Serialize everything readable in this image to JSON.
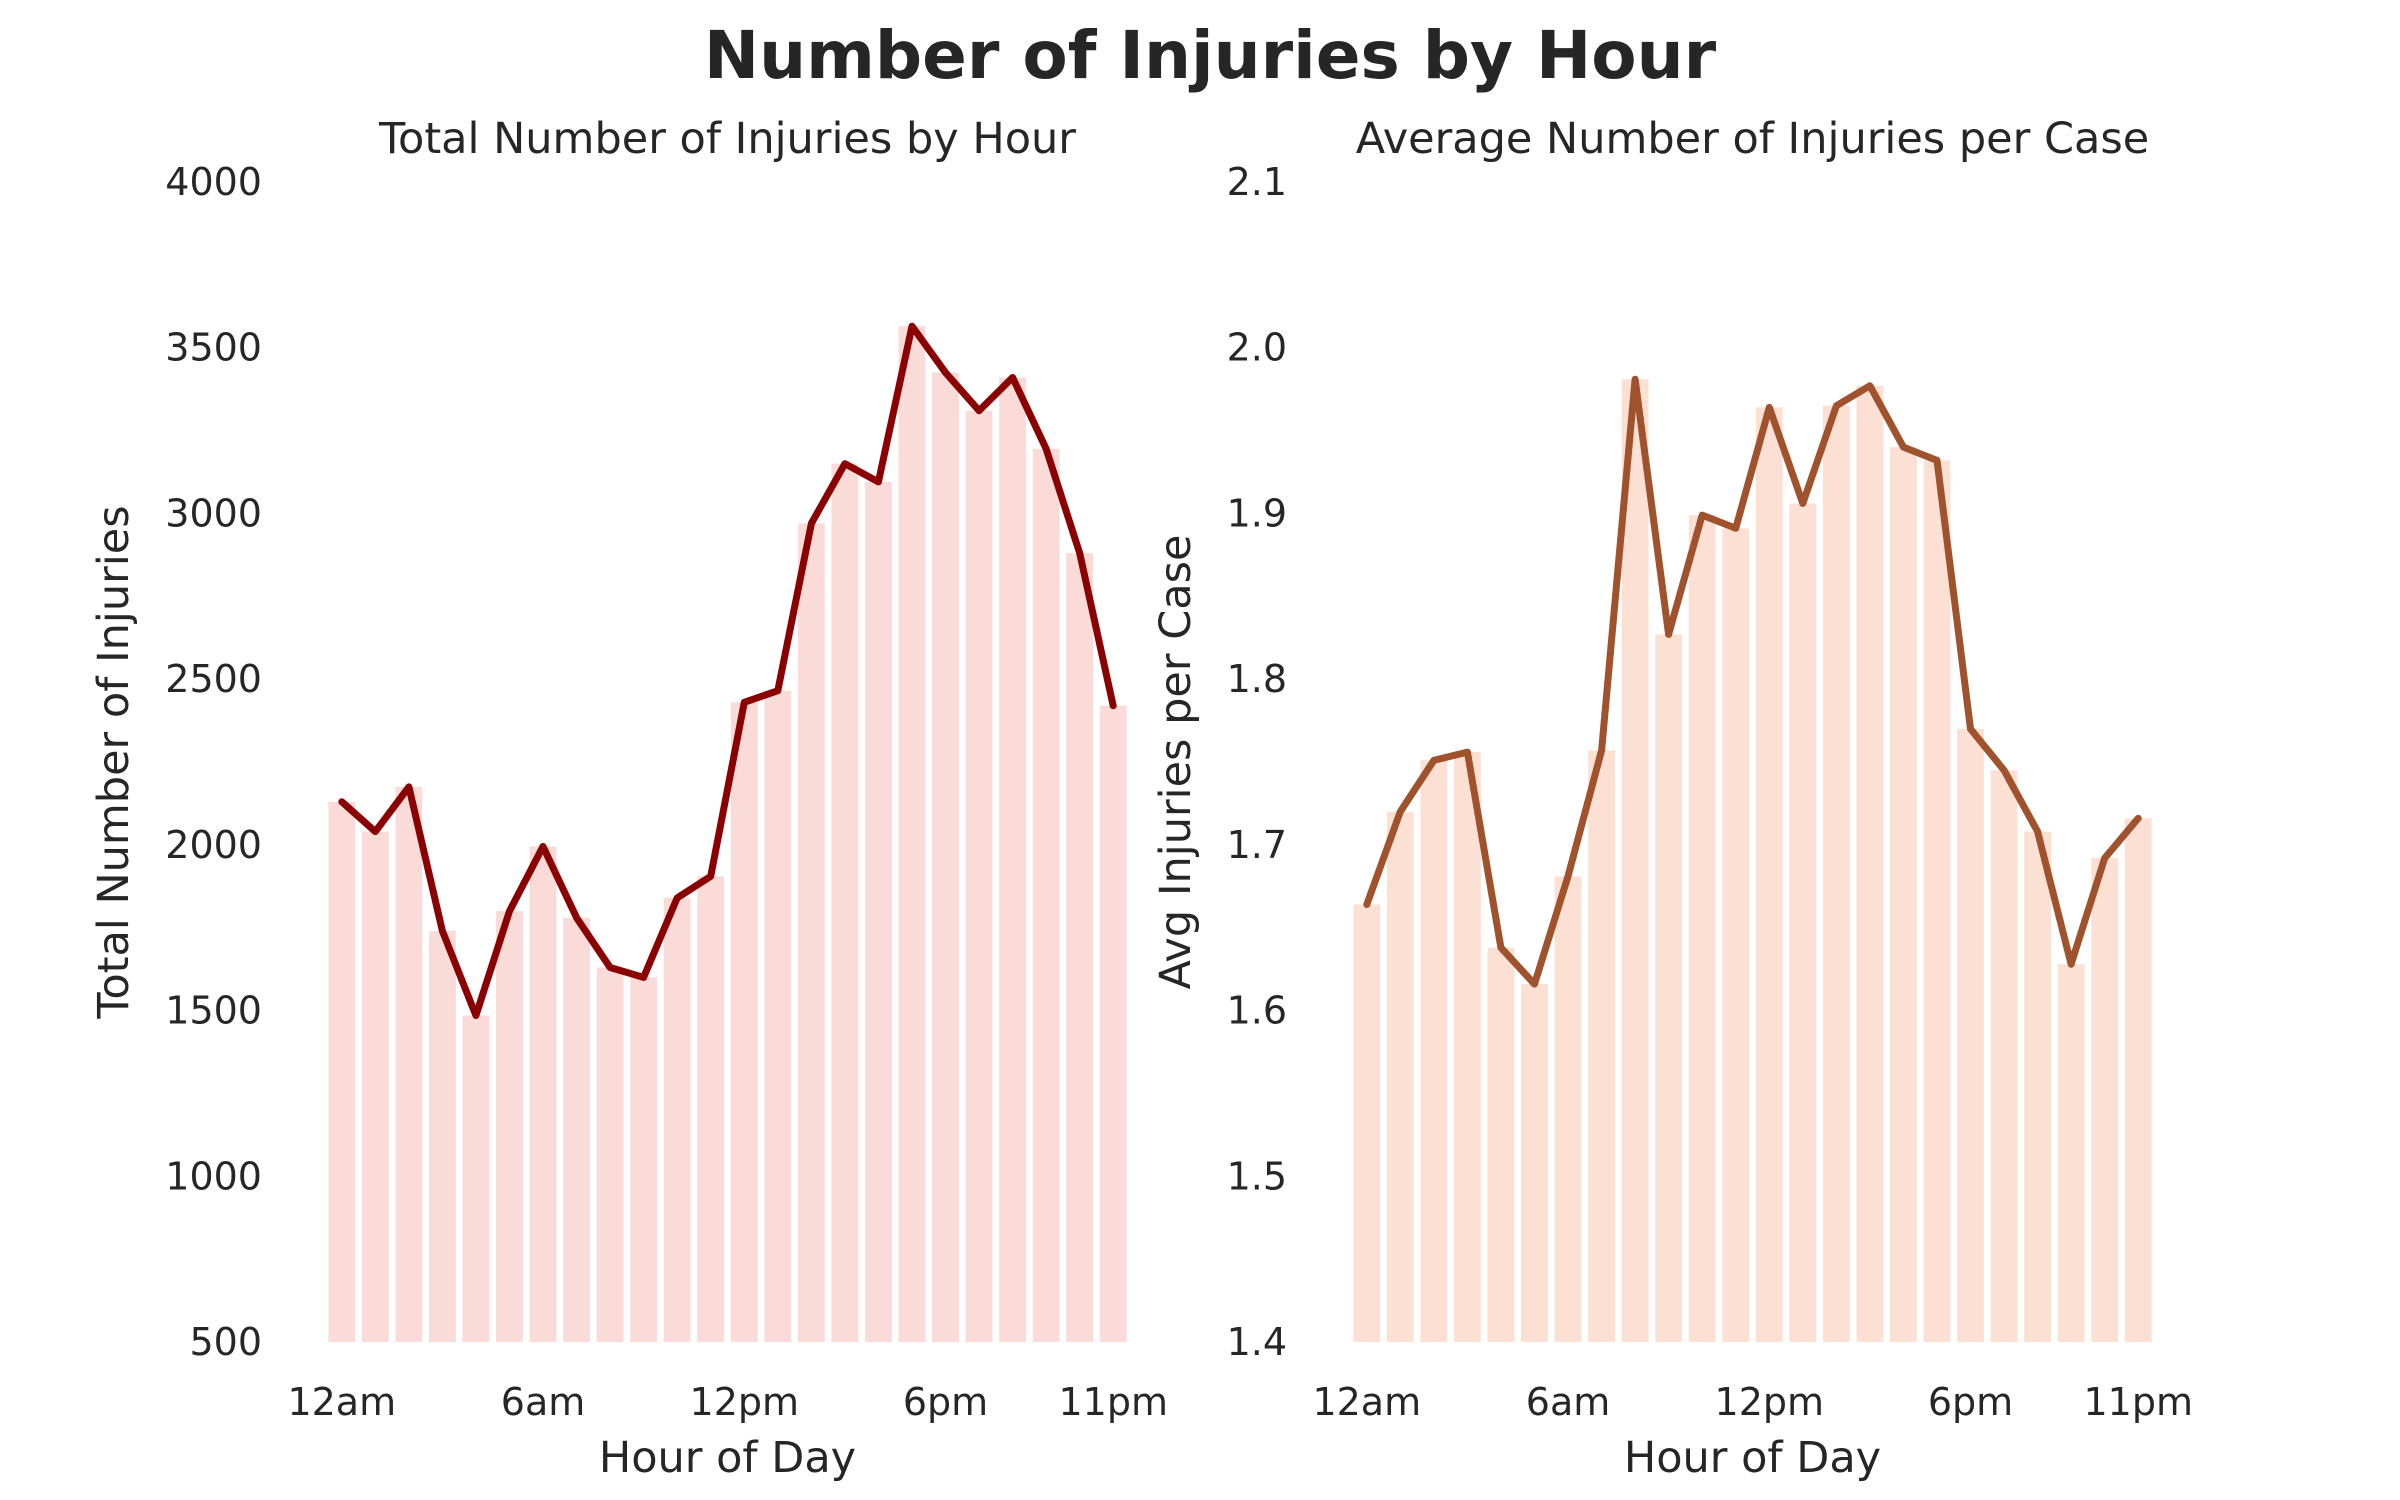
{
  "figure": {
    "suptitle": "Number of Injuries by Hour"
  },
  "chart_data": [
    {
      "type": "bar",
      "title": "Total Number of Injuries by Hour",
      "xlabel": "Hour of Day",
      "ylabel": "Total Number of Injuries",
      "categories": [
        0,
        1,
        2,
        3,
        4,
        5,
        6,
        7,
        8,
        9,
        10,
        11,
        12,
        13,
        14,
        15,
        16,
        17,
        18,
        19,
        20,
        21,
        22,
        23
      ],
      "x_tick_positions": [
        0,
        6,
        12,
        18,
        23
      ],
      "x_tick_labels": [
        "12am",
        "6am",
        "12pm",
        "6pm",
        "11pm"
      ],
      "ylim": [
        500,
        4000
      ],
      "y_ticks": [
        500,
        1000,
        1500,
        2000,
        2500,
        3000,
        3500,
        4000
      ],
      "grid": false,
      "bar_color": "#fadbd8",
      "line_color": "#8b0000",
      "series": [
        {
          "values": [
            2130,
            2040,
            2175,
            1740,
            1485,
            1800,
            1995,
            1780,
            1630,
            1600,
            1840,
            1905,
            2430,
            2465,
            2970,
            3150,
            3095,
            3565,
            3425,
            3310,
            3410,
            3195,
            2880,
            2420
          ]
        }
      ]
    },
    {
      "type": "bar",
      "title": "Average Number of Injuries per Case",
      "xlabel": "Hour of Day",
      "ylabel": "Avg Injuries per Case",
      "categories": [
        0,
        1,
        2,
        3,
        4,
        5,
        6,
        7,
        8,
        9,
        10,
        11,
        12,
        13,
        14,
        15,
        16,
        17,
        18,
        19,
        20,
        21,
        22,
        23
      ],
      "x_tick_positions": [
        0,
        6,
        12,
        18,
        23
      ],
      "x_tick_labels": [
        "12am",
        "6am",
        "12pm",
        "6pm",
        "11pm"
      ],
      "ylim": [
        1.4,
        2.1
      ],
      "y_ticks": [
        "1.4",
        "1.5",
        "1.6",
        "1.7",
        "1.8",
        "1.9",
        "2.0",
        "2.1"
      ],
      "grid": false,
      "bar_color": "#fde0d4",
      "line_color": "#a0522d",
      "series": [
        {
          "values": [
            1.664,
            1.72,
            1.751,
            1.756,
            1.638,
            1.616,
            1.681,
            1.757,
            1.981,
            1.827,
            1.899,
            1.891,
            1.964,
            1.906,
            1.965,
            1.977,
            1.94,
            1.932,
            1.77,
            1.745,
            1.708,
            1.628,
            1.692,
            1.716
          ]
        }
      ]
    }
  ]
}
